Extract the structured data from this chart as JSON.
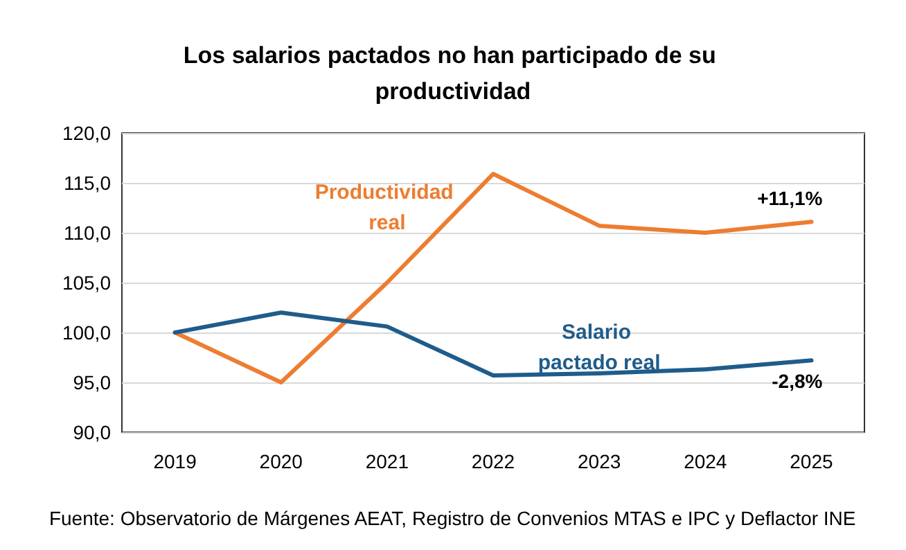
{
  "chart_data": {
    "type": "line",
    "title": "Los salarios pactados no han participado de su productividad",
    "categories": [
      "2019",
      "2020",
      "2021",
      "2022",
      "2023",
      "2024",
      "2025"
    ],
    "series": [
      {
        "name": "Productividad real",
        "color": "#ed7d31",
        "values": [
          100,
          95.0,
          105.0,
          115.9,
          110.7,
          110.0,
          111.1
        ]
      },
      {
        "name": "Salario pactado real",
        "color": "#1f5c8b",
        "values": [
          100,
          102.0,
          100.6,
          95.7,
          95.9,
          96.3,
          97.2
        ]
      }
    ],
    "ylim": [
      90,
      120
    ],
    "yticks": [
      {
        "value": 90,
        "label": "90,0"
      },
      {
        "value": 95,
        "label": "95,0"
      },
      {
        "value": 100,
        "label": "100,0"
      },
      {
        "value": 105,
        "label": "105,0"
      },
      {
        "value": 110,
        "label": "110,0"
      },
      {
        "value": 115,
        "label": "115,0"
      },
      {
        "value": 120,
        "label": "120,0"
      }
    ],
    "grid": "y",
    "legend": false,
    "marker": "none",
    "line_style": "solid",
    "annotations": [
      {
        "text": "+11,1%",
        "x": "2025",
        "y": 111.1
      },
      {
        "text": "-2,8%",
        "x": "2025",
        "y": 97.2
      },
      "Fuente: Observatorio de Márgenes AEAT, Registro de Convenios MTAS e IPC y Deflactor INE"
    ]
  }
}
